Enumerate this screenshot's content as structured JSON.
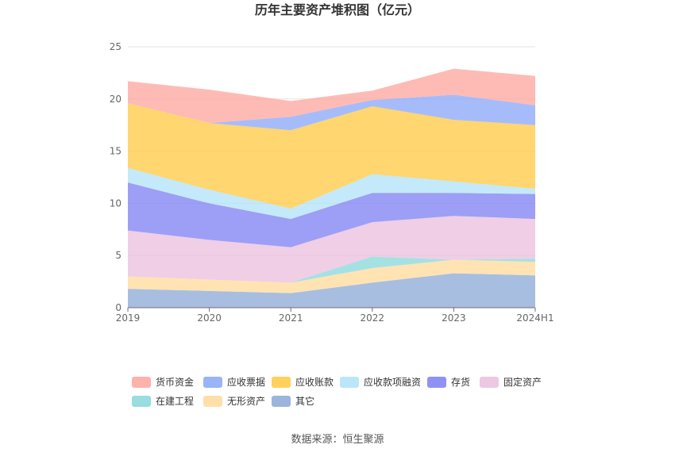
{
  "chart_data": {
    "type": "area",
    "stacked": true,
    "title": "历年主要资产堆积图（亿元）",
    "categories": [
      "2019",
      "2020",
      "2021",
      "2022",
      "2023",
      "2024H1"
    ],
    "ylim": [
      0,
      25
    ],
    "yticks": [
      0,
      5,
      10,
      15,
      20,
      25
    ],
    "grid": true,
    "legend_position": "bottom",
    "series": [
      {
        "name": "其它",
        "color": "#8aa8d6",
        "values": [
          1.8,
          1.6,
          1.4,
          2.4,
          3.3,
          3.1
        ]
      },
      {
        "name": "无形资产",
        "color": "#ffd99a",
        "values": [
          1.2,
          1.1,
          1.0,
          1.4,
          1.3,
          1.3
        ]
      },
      {
        "name": "在建工程",
        "color": "#86d7d9",
        "values": [
          0.0,
          0.0,
          0.0,
          1.1,
          0.0,
          0.3
        ]
      },
      {
        "name": "固定资产",
        "color": "#e9bedd",
        "values": [
          4.4,
          3.8,
          3.4,
          3.3,
          4.2,
          3.8
        ]
      },
      {
        "name": "存货",
        "color": "#7b7ff2",
        "values": [
          4.6,
          3.5,
          2.7,
          2.8,
          2.2,
          2.4
        ]
      },
      {
        "name": "应收款项融资",
        "color": "#afe2f8",
        "values": [
          1.4,
          1.3,
          1.0,
          1.8,
          1.1,
          0.5
        ]
      },
      {
        "name": "应收账款",
        "color": "#ffc83f",
        "values": [
          6.2,
          6.4,
          7.5,
          6.5,
          5.9,
          6.1
        ]
      },
      {
        "name": "应收票据",
        "color": "#88a6f8",
        "values": [
          0.0,
          0.0,
          1.3,
          0.6,
          2.4,
          1.9
        ]
      },
      {
        "name": "货币资金",
        "color": "#fda49c",
        "values": [
          2.1,
          3.2,
          1.5,
          0.9,
          2.5,
          2.8
        ]
      }
    ],
    "legend_order": [
      "货币资金",
      "应收票据",
      "应收账款",
      "应收款项融资",
      "存货",
      "固定资产",
      "在建工程",
      "无形资产",
      "其它"
    ]
  },
  "footer": {
    "source": "数据来源：恒生聚源"
  }
}
